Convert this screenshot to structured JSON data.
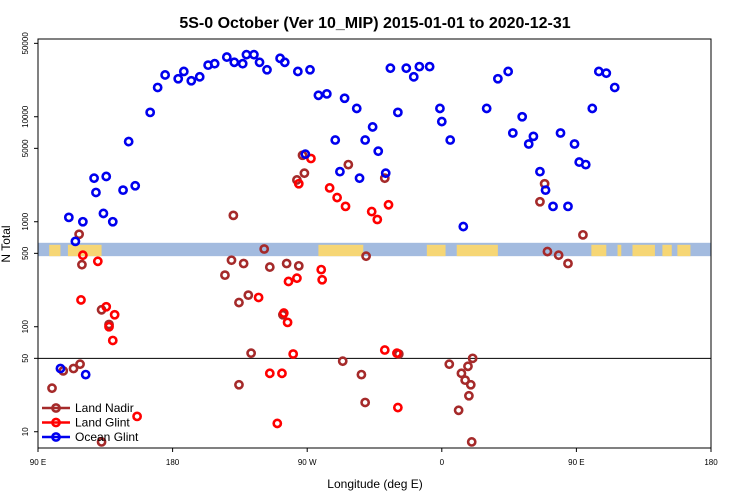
{
  "chart_data": {
    "type": "scatter",
    "title": "5S-0 October (Ver 10_MIP)   2015-01-01 to 2020-12-31",
    "xlabel": "Longitude (deg E)",
    "ylabel": "N Total",
    "y_scale": "log",
    "x_domain": [
      90,
      450
    ],
    "y_domain": [
      7,
      55000
    ],
    "x_ticks": [
      {
        "value": 90,
        "label": "90 E"
      },
      {
        "value": 162,
        "label": "180"
      },
      {
        "value": 234,
        "label": "90 W"
      },
      {
        "value": 306,
        "label": "0"
      },
      {
        "value": 378,
        "label": "90 E"
      },
      {
        "value": 450,
        "label": "180"
      }
    ],
    "y_ticks": [
      {
        "value": 10,
        "label": "10"
      },
      {
        "value": 50,
        "label": "50"
      },
      {
        "value": 100,
        "label": "100"
      },
      {
        "value": 500,
        "label": "500"
      },
      {
        "value": 1000,
        "label": "1000"
      },
      {
        "value": 5000,
        "label": "5000"
      },
      {
        "value": 10000,
        "label": "10000"
      },
      {
        "value": 50000,
        "label": "50000"
      }
    ],
    "reference_line": {
      "value": 50
    },
    "map_band": {
      "y_low": 470,
      "y_high": 630,
      "ocean_color": "#a3bbdf",
      "land_color": "#f6d675",
      "land_segments": [
        [
          96,
          102
        ],
        [
          106,
          124
        ],
        [
          240,
          264
        ],
        [
          298,
          308
        ],
        [
          314,
          336
        ],
        [
          386,
          394
        ],
        [
          400,
          402
        ],
        [
          408,
          420
        ],
        [
          424,
          429
        ],
        [
          432,
          439
        ]
      ]
    },
    "legend": {
      "position": "bottom-left"
    },
    "series": [
      {
        "name": "Land Nadir",
        "color": "#a52a2a",
        "points": [
          [
            97.5,
            26
          ],
          [
            103.5,
            38
          ],
          [
            109.0,
            40
          ],
          [
            112.5,
            44
          ],
          [
            112.0,
            760
          ],
          [
            113.5,
            390
          ],
          [
            124.0,
            145
          ],
          [
            128.0,
            105
          ],
          [
            124.0,
            8
          ],
          [
            194.5,
            1150
          ],
          [
            190.0,
            310
          ],
          [
            193.5,
            430
          ],
          [
            197.5,
            170
          ],
          [
            197.5,
            28
          ],
          [
            200.0,
            400
          ],
          [
            202.5,
            200
          ],
          [
            204.0,
            56
          ],
          [
            211.0,
            550
          ],
          [
            214.0,
            370
          ],
          [
            221.0,
            130
          ],
          [
            223.0,
            400
          ],
          [
            228.5,
            2500
          ],
          [
            229.5,
            380
          ],
          [
            231.5,
            4300
          ],
          [
            232.5,
            2900
          ],
          [
            253.0,
            47
          ],
          [
            256.0,
            3500
          ],
          [
            263.0,
            35
          ],
          [
            265.0,
            19
          ],
          [
            265.5,
            470
          ],
          [
            275.5,
            2600
          ],
          [
            283.0,
            55
          ],
          [
            310.0,
            44
          ],
          [
            315.0,
            16
          ],
          [
            316.5,
            36
          ],
          [
            321.5,
            28
          ],
          [
            322.0,
            8
          ],
          [
            320.0,
            42
          ],
          [
            320.5,
            22
          ],
          [
            322.5,
            50
          ],
          [
            318.5,
            31
          ],
          [
            358.5,
            1550
          ],
          [
            361.0,
            2300
          ],
          [
            362.5,
            520
          ],
          [
            368.5,
            480
          ],
          [
            373.5,
            400
          ],
          [
            381.5,
            750
          ]
        ]
      },
      {
        "name": "Land Glint",
        "color": "#ff0000",
        "points": [
          [
            113.0,
            180
          ],
          [
            114.0,
            480
          ],
          [
            122.0,
            420
          ],
          [
            126.5,
            155
          ],
          [
            131.0,
            130
          ],
          [
            128.0,
            100
          ],
          [
            130.0,
            74
          ],
          [
            143.0,
            14
          ],
          [
            208.0,
            190
          ],
          [
            218.0,
            12
          ],
          [
            221.5,
            135
          ],
          [
            214.0,
            36
          ],
          [
            220.5,
            36
          ],
          [
            223.5,
            110
          ],
          [
            224.0,
            270
          ],
          [
            226.5,
            55
          ],
          [
            228.5,
            290
          ],
          [
            229.5,
            2300
          ],
          [
            236.0,
            4000
          ],
          [
            241.5,
            350
          ],
          [
            242.0,
            280
          ],
          [
            246.0,
            2100
          ],
          [
            250.0,
            1700
          ],
          [
            254.5,
            1400
          ],
          [
            268.5,
            1250
          ],
          [
            271.5,
            1050
          ],
          [
            275.5,
            60
          ],
          [
            277.5,
            1450
          ],
          [
            282.5,
            17
          ],
          [
            282.0,
            56
          ]
        ]
      },
      {
        "name": "Ocean Glint",
        "color": "#0000ee",
        "points": [
          [
            102.0,
            40
          ],
          [
            106.5,
            1100
          ],
          [
            110.0,
            650
          ],
          [
            114.0,
            1000
          ],
          [
            115.5,
            35
          ],
          [
            120.0,
            2600
          ],
          [
            121.0,
            1900
          ],
          [
            125.0,
            1200
          ],
          [
            126.5,
            2700
          ],
          [
            130.0,
            1000
          ],
          [
            135.5,
            2000
          ],
          [
            138.5,
            5800
          ],
          [
            142.0,
            2200
          ],
          [
            150.0,
            11000
          ],
          [
            154.0,
            19000
          ],
          [
            158.0,
            25000
          ],
          [
            165.0,
            23000
          ],
          [
            168.0,
            27000
          ],
          [
            172.0,
            22000
          ],
          [
            176.5,
            24000
          ],
          [
            181.0,
            31000
          ],
          [
            184.5,
            32000
          ],
          [
            191.0,
            37000
          ],
          [
            195.0,
            33000
          ],
          [
            199.5,
            32000
          ],
          [
            201.5,
            39000
          ],
          [
            205.5,
            39000
          ],
          [
            208.5,
            33000
          ],
          [
            212.5,
            28000
          ],
          [
            219.5,
            36000
          ],
          [
            222.0,
            33000
          ],
          [
            229.0,
            27000
          ],
          [
            233.0,
            4400
          ],
          [
            235.5,
            28000
          ],
          [
            240.0,
            16000
          ],
          [
            244.5,
            16500
          ],
          [
            249.0,
            6000
          ],
          [
            251.5,
            3000
          ],
          [
            254.0,
            15000
          ],
          [
            260.5,
            12000
          ],
          [
            262.0,
            2600
          ],
          [
            265.0,
            6000
          ],
          [
            269.0,
            8000
          ],
          [
            272.0,
            4700
          ],
          [
            276.0,
            2900
          ],
          [
            278.5,
            29000
          ],
          [
            282.5,
            11000
          ],
          [
            287.0,
            29000
          ],
          [
            291.0,
            24000
          ],
          [
            294.0,
            30000
          ],
          [
            299.5,
            30000
          ],
          [
            305.0,
            12000
          ],
          [
            306.0,
            9000
          ],
          [
            310.5,
            6000
          ],
          [
            317.5,
            900
          ],
          [
            330.0,
            12000
          ],
          [
            336.0,
            23000
          ],
          [
            341.5,
            27000
          ],
          [
            344.0,
            7000
          ],
          [
            349.0,
            10000
          ],
          [
            352.5,
            5500
          ],
          [
            355.0,
            6500
          ],
          [
            358.5,
            3000
          ],
          [
            361.5,
            2000
          ],
          [
            365.5,
            1400
          ],
          [
            369.5,
            7000
          ],
          [
            373.5,
            1400
          ],
          [
            377.0,
            5500
          ],
          [
            379.5,
            3700
          ],
          [
            383.0,
            3500
          ],
          [
            386.5,
            12000
          ],
          [
            390.0,
            27000
          ],
          [
            394.0,
            26000
          ],
          [
            398.5,
            19000
          ]
        ]
      }
    ]
  }
}
